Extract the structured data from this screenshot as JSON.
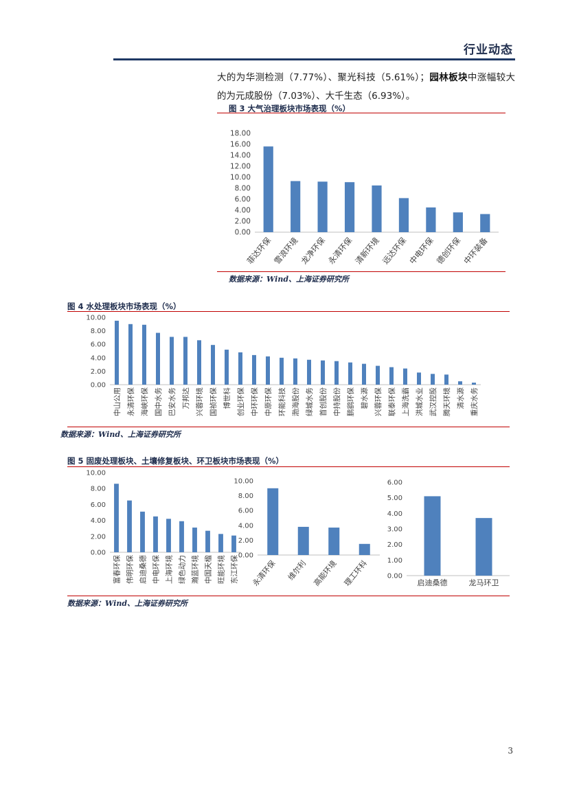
{
  "header": {
    "title": "行业动态"
  },
  "paragraph": {
    "part1": "大的为华测检测（7.77%）、聚光科技（5.61%）；",
    "bold": "园林板块",
    "part2": "中涨幅较大的为元成股份（7.03%）、大千生态（6.93%）。"
  },
  "figures": {
    "fig3": {
      "title": "图 3 大气治理板块市场表现（%）",
      "source": "数据来源：Wind、上海证券研究所"
    },
    "fig4": {
      "title": "图 4  水处理板块市场表现（%）",
      "source": "数据来源：Wind、上海证券研究所"
    },
    "fig5": {
      "title": "图 5 固废处理板块、土壤修复板块、环卫板块市场表现（%）",
      "source": "数据来源：Wind、上海证券研究所"
    }
  },
  "page_number": "3",
  "colors": {
    "bar": "#4f81bd",
    "rule": "#c00000",
    "header_rule": "#1f3864"
  },
  "chart_data": [
    {
      "id": "fig3",
      "type": "bar",
      "categories": [
        "菲达环保",
        "雪浪环境",
        "龙净环保",
        "永清环保",
        "清新环境",
        "远达环保",
        "中电环保",
        "德创环保",
        "中环装备"
      ],
      "values": [
        15.6,
        9.3,
        9.2,
        9.1,
        8.5,
        6.2,
        4.5,
        3.6,
        3.3
      ],
      "ylim": [
        0,
        18
      ],
      "ystep": 2,
      "tick_labels": [
        "0.00",
        "2.00",
        "4.00",
        "6.00",
        "8.00",
        "10.00",
        "12.00",
        "14.00",
        "16.00",
        "18.00"
      ]
    },
    {
      "id": "fig4",
      "type": "bar",
      "categories": [
        "中山公用",
        "永清环保",
        "海峡环保",
        "国中水务",
        "巴安水务",
        "万邦达",
        "兴蓉环境",
        "国祯环保",
        "博世科",
        "创业环保",
        "中环环保",
        "中原环保",
        "环能科技",
        "渤海股份",
        "绿城水务",
        "首创股份",
        "中持股份",
        "鹏鹞环保",
        "碧水源",
        "兴蓉环保",
        "联泰环保",
        "上海洗霸",
        "洪城水业",
        "武汉控股",
        "腾天环境",
        "清水源",
        "重庆水务"
      ],
      "values": [
        9.5,
        9.0,
        8.9,
        7.7,
        7.1,
        7.1,
        6.6,
        5.9,
        5.2,
        4.8,
        4.4,
        4.2,
        4.0,
        3.9,
        3.7,
        3.6,
        3.5,
        3.3,
        3.1,
        2.8,
        2.6,
        2.4,
        1.8,
        1.6,
        1.5,
        0.5,
        0.3
      ],
      "ylim": [
        0,
        10
      ],
      "ystep": 2,
      "tick_labels": [
        "0.00",
        "2.00",
        "4.00",
        "6.00",
        "8.00",
        "10.00"
      ]
    },
    {
      "id": "fig5a",
      "type": "bar",
      "categories": [
        "富春环保",
        "伟明环保",
        "启迪桑德",
        "中电环保",
        "上海环境",
        "绿色动力",
        "瀚蓝环境",
        "中国天楹",
        "旺能环境",
        "东江环保"
      ],
      "values": [
        8.6,
        6.5,
        5.1,
        4.5,
        4.2,
        3.9,
        3.1,
        2.7,
        2.3,
        2.1
      ],
      "ylim": [
        0,
        10
      ],
      "ystep": 2,
      "tick_labels": [
        "0.00",
        "2.00",
        "4.00",
        "6.00",
        "8.00",
        "10.00"
      ]
    },
    {
      "id": "fig5b",
      "type": "bar",
      "categories": [
        "永清环保",
        "维尔利",
        "高能环境",
        "理工环科"
      ],
      "values": [
        9.0,
        3.8,
        3.7,
        1.5
      ],
      "ylim": [
        0,
        10
      ],
      "ystep": 2,
      "tick_labels": [
        "0.00",
        "2.00",
        "4.00",
        "6.00",
        "8.00",
        "10.00"
      ]
    },
    {
      "id": "fig5c",
      "type": "bar",
      "categories": [
        "启迪桑德",
        "龙马环卫"
      ],
      "values": [
        5.1,
        3.7
      ],
      "ylim": [
        0,
        6
      ],
      "ystep": 1,
      "tick_labels": [
        "0.00",
        "1.00",
        "2.00",
        "3.00",
        "4.00",
        "5.00",
        "6.00"
      ]
    }
  ]
}
